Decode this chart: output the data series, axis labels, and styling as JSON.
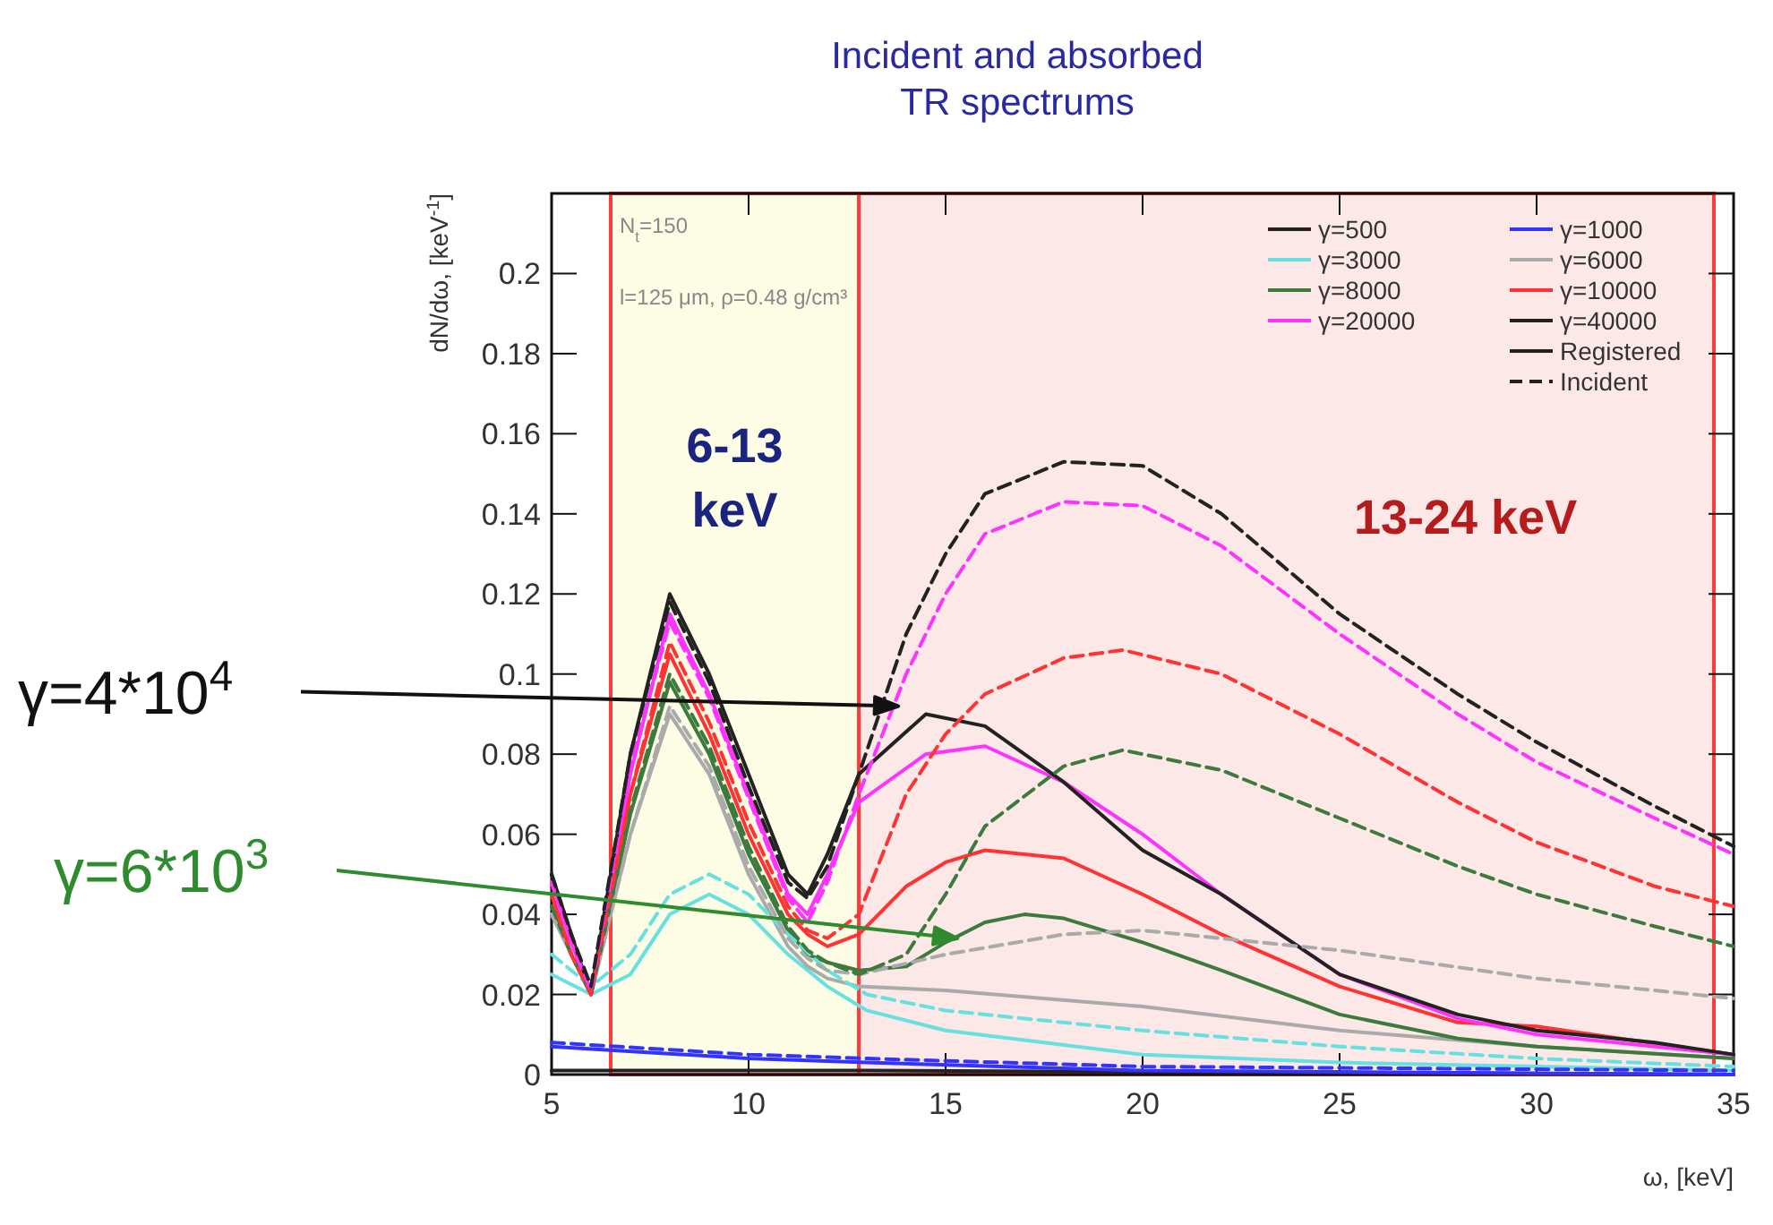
{
  "chart_data": {
    "type": "line",
    "title": "Incident and absorbed\nTR spectrums",
    "xlabel": "ω, [keV]",
    "ylabel": "dN/dω, [keV$^{-1}$]",
    "xlim": [
      5,
      35
    ],
    "xticks": [
      5,
      10,
      15,
      20,
      25,
      30,
      35
    ],
    "ylim": [
      0,
      0.22
    ],
    "yticks": [
      0,
      0.02,
      0.04,
      0.06,
      0.08,
      0.1,
      0.12,
      0.14,
      0.16,
      0.18,
      0.2
    ],
    "grid": false,
    "legend": "top right",
    "marker": "none",
    "bands": [
      {
        "axis": "x",
        "from": 6.5,
        "to": 12.8,
        "label": "6-13\nkeV",
        "color": "#fdfde6"
      },
      {
        "axis": "x",
        "from": 12.8,
        "to": 34.5,
        "label": "13-24 keV",
        "color": "#fde8e8"
      }
    ],
    "annotations": [
      "N$_{t}$=150",
      "l=125 μm, ρ=0.48 g/cm³",
      "Registered",
      "Incident",
      {
        "text": "γ=4*10$^{4}$",
        "x": 13.8,
        "y": 0.092
      },
      {
        "text": "γ=6*10$^{3}$",
        "x": 15.3,
        "y": 0.034
      }
    ],
    "series": [
      {
        "name": "γ=500",
        "color": "#222222",
        "line_style": "solid",
        "x": [
          5,
          13,
          35
        ],
        "values": [
          0.001,
          0.001,
          0
        ]
      },
      {
        "name": "γ=1000",
        "color": "#3333ff",
        "line_style": "solid",
        "x": [
          5,
          10,
          13,
          20,
          35
        ],
        "values": [
          0.007,
          0.004,
          0.003,
          0.001,
          0
        ]
      },
      {
        "name": "γ=3000",
        "color": "#66e0e0",
        "line_style": "solid",
        "x": [
          5,
          6,
          7,
          8,
          9,
          10,
          11,
          12,
          13,
          15,
          20,
          25,
          30,
          35
        ],
        "values": [
          0.025,
          0.02,
          0.025,
          0.04,
          0.045,
          0.04,
          0.03,
          0.022,
          0.016,
          0.011,
          0.005,
          0.003,
          0.002,
          0.001
        ]
      },
      {
        "name": "γ=6000",
        "color": "#aaaaaa",
        "line_style": "solid",
        "x": [
          5,
          5.5,
          6,
          7,
          8,
          9,
          10,
          11,
          11.5,
          12,
          12.8,
          15,
          20,
          25,
          30,
          35
        ],
        "values": [
          0.04,
          0.03,
          0.02,
          0.06,
          0.09,
          0.075,
          0.05,
          0.032,
          0.027,
          0.024,
          0.022,
          0.021,
          0.017,
          0.011,
          0.007,
          0.004
        ]
      },
      {
        "name": "γ=8000",
        "color": "#3d7a3d",
        "line_style": "solid",
        "x": [
          5,
          5.5,
          6,
          7,
          8,
          9,
          10,
          11,
          11.5,
          12,
          12.8,
          14,
          15,
          16,
          17,
          18,
          20,
          22,
          25,
          28,
          30,
          35
        ],
        "values": [
          0.042,
          0.03,
          0.02,
          0.065,
          0.098,
          0.08,
          0.055,
          0.036,
          0.03,
          0.028,
          0.026,
          0.027,
          0.033,
          0.038,
          0.04,
          0.039,
          0.033,
          0.026,
          0.015,
          0.009,
          0.007,
          0.004
        ]
      },
      {
        "name": "γ=10000",
        "color": "#ff3333",
        "line_style": "solid",
        "x": [
          5,
          5.5,
          6,
          7,
          8,
          9,
          10,
          11,
          11.5,
          12,
          12.8,
          14,
          15,
          16,
          18,
          20,
          22,
          25,
          28,
          30,
          35
        ],
        "values": [
          0.045,
          0.03,
          0.02,
          0.07,
          0.105,
          0.085,
          0.06,
          0.04,
          0.035,
          0.032,
          0.035,
          0.047,
          0.053,
          0.056,
          0.054,
          0.045,
          0.035,
          0.022,
          0.013,
          0.012,
          0.005
        ]
      },
      {
        "name": "γ=20000",
        "color": "#ff33ff",
        "line_style": "solid",
        "x": [
          5,
          5.5,
          6,
          7,
          8,
          9,
          10,
          11,
          11.5,
          12,
          12.8,
          14.5,
          16,
          18,
          20,
          22,
          25,
          28,
          30,
          35
        ],
        "values": [
          0.048,
          0.033,
          0.02,
          0.075,
          0.115,
          0.095,
          0.07,
          0.045,
          0.04,
          0.05,
          0.068,
          0.08,
          0.082,
          0.073,
          0.06,
          0.045,
          0.025,
          0.014,
          0.01,
          0.005
        ]
      },
      {
        "name": "γ=40000",
        "color": "#222222",
        "line_style": "solid",
        "x": [
          5,
          5.5,
          6,
          7,
          8,
          9,
          10,
          11,
          11.5,
          12,
          12.8,
          14.5,
          16,
          18,
          20,
          22,
          25,
          28,
          30,
          33,
          35
        ],
        "values": [
          0.05,
          0.035,
          0.02,
          0.08,
          0.12,
          0.1,
          0.075,
          0.05,
          0.045,
          0.055,
          0.075,
          0.09,
          0.087,
          0.073,
          0.056,
          0.045,
          0.025,
          0.015,
          0.011,
          0.008,
          0.005
        ]
      },
      {
        "color": "#3333ff",
        "line_style": "dashed",
        "x": [
          5,
          10,
          13,
          20,
          35
        ],
        "values": [
          0.008,
          0.005,
          0.004,
          0.002,
          0.001
        ]
      },
      {
        "color": "#66e0e0",
        "line_style": "dashed",
        "x": [
          5,
          6,
          7,
          8,
          9,
          10,
          11,
          12,
          13,
          15,
          20,
          25,
          30,
          35
        ],
        "values": [
          0.03,
          0.022,
          0.03,
          0.045,
          0.05,
          0.045,
          0.035,
          0.026,
          0.02,
          0.016,
          0.011,
          0.007,
          0.004,
          0.002
        ]
      },
      {
        "color": "#aaaaaa",
        "line_style": "dashed",
        "x": [
          5,
          5.5,
          6,
          7,
          8,
          9,
          10,
          11,
          11.5,
          12,
          12.8,
          15,
          18,
          20,
          25,
          30,
          35
        ],
        "values": [
          0.04,
          0.03,
          0.02,
          0.06,
          0.092,
          0.077,
          0.052,
          0.034,
          0.029,
          0.026,
          0.025,
          0.03,
          0.035,
          0.036,
          0.031,
          0.024,
          0.019
        ]
      },
      {
        "color": "#3d7a3d",
        "line_style": "dashed",
        "x": [
          5,
          5.5,
          6,
          7,
          8,
          9,
          10,
          11,
          11.5,
          12,
          12.8,
          14,
          15,
          16,
          18,
          19.5,
          22,
          25,
          28,
          30,
          33,
          35
        ],
        "values": [
          0.042,
          0.03,
          0.02,
          0.066,
          0.1,
          0.082,
          0.057,
          0.037,
          0.031,
          0.028,
          0.025,
          0.03,
          0.045,
          0.062,
          0.077,
          0.081,
          0.076,
          0.064,
          0.052,
          0.045,
          0.037,
          0.032
        ]
      },
      {
        "color": "#ff3333",
        "line_style": "dashed",
        "x": [
          5,
          5.5,
          6,
          7,
          8,
          9,
          10,
          11,
          11.5,
          12,
          12.8,
          14,
          15,
          16,
          18,
          19.5,
          22,
          25,
          28,
          30,
          33,
          35
        ],
        "values": [
          0.045,
          0.03,
          0.02,
          0.07,
          0.108,
          0.088,
          0.063,
          0.042,
          0.036,
          0.034,
          0.04,
          0.07,
          0.085,
          0.095,
          0.104,
          0.106,
          0.1,
          0.085,
          0.068,
          0.058,
          0.047,
          0.042
        ]
      },
      {
        "color": "#ff33ff",
        "line_style": "dashed",
        "x": [
          5,
          5.5,
          6,
          7,
          8,
          9,
          10,
          11,
          11.5,
          12,
          12.8,
          14,
          15,
          16,
          18,
          20,
          22,
          25,
          28,
          30,
          33,
          35
        ],
        "values": [
          0.048,
          0.033,
          0.021,
          0.077,
          0.113,
          0.094,
          0.069,
          0.044,
          0.038,
          0.048,
          0.07,
          0.1,
          0.12,
          0.135,
          0.143,
          0.142,
          0.132,
          0.11,
          0.09,
          0.078,
          0.064,
          0.055
        ]
      },
      {
        "color": "#222222",
        "line_style": "dashed",
        "x": [
          5,
          5.5,
          6,
          7,
          8,
          9,
          10,
          11,
          11.5,
          12,
          12.8,
          14,
          15,
          16,
          18,
          20,
          22,
          25,
          28,
          30,
          33,
          35
        ],
        "values": [
          0.05,
          0.035,
          0.022,
          0.08,
          0.118,
          0.098,
          0.072,
          0.048,
          0.044,
          0.052,
          0.075,
          0.11,
          0.13,
          0.145,
          0.153,
          0.152,
          0.14,
          0.115,
          0.095,
          0.083,
          0.067,
          0.057
        ]
      }
    ]
  }
}
